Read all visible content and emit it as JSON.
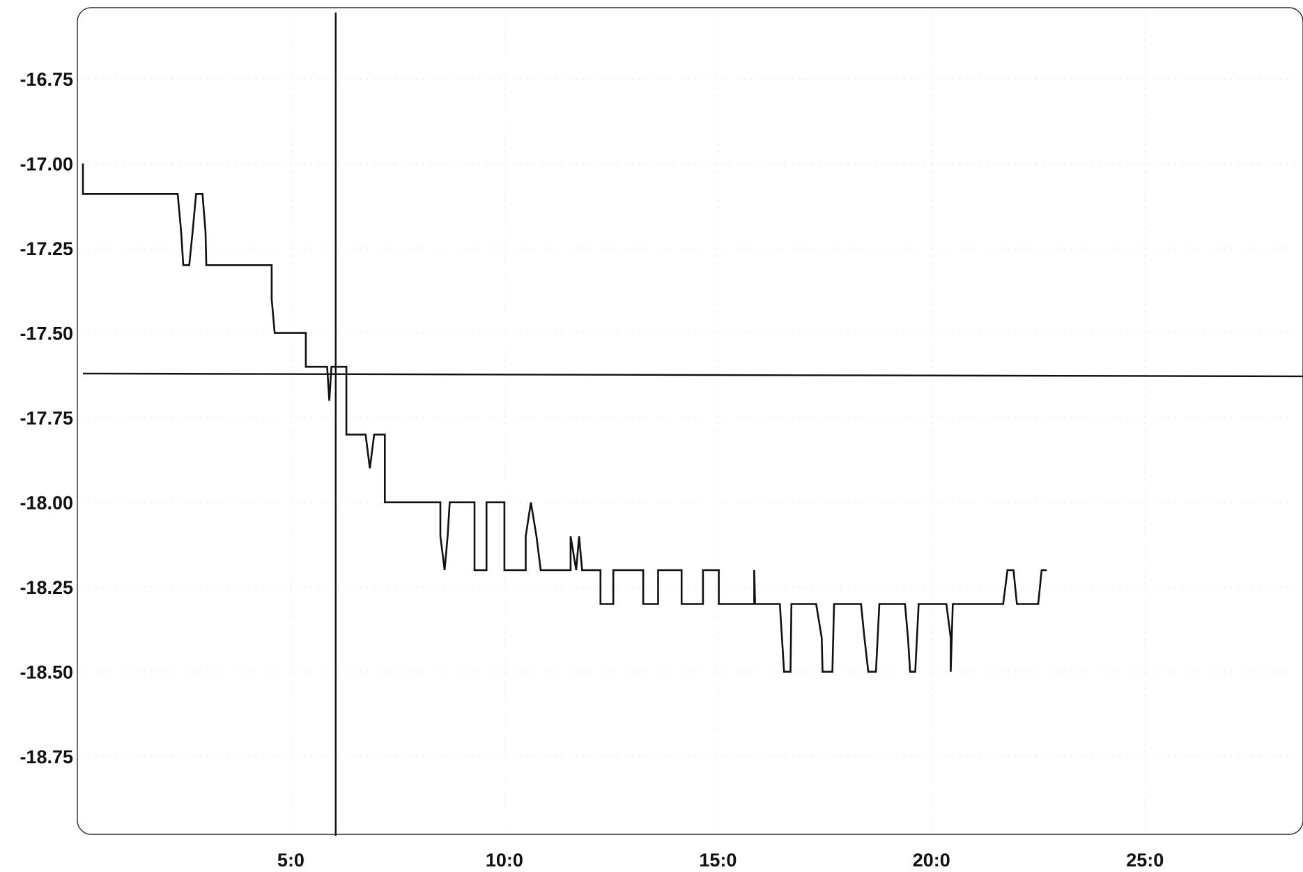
{
  "chart_data": {
    "type": "line",
    "title": "",
    "xlabel": "",
    "ylabel": "",
    "xlim": [
      0,
      28.7
    ],
    "ylim": [
      -18.98,
      -16.54
    ],
    "grid": true,
    "y_ticks": [
      {
        "value": -16.75,
        "label": "-16.75"
      },
      {
        "value": -17.0,
        "label": "-17.00"
      },
      {
        "value": -17.25,
        "label": "-17.25"
      },
      {
        "value": -17.5,
        "label": "-17.50"
      },
      {
        "value": -17.75,
        "label": "-17.75"
      },
      {
        "value": -18.0,
        "label": "-18.00"
      },
      {
        "value": -18.25,
        "label": "-18.25"
      },
      {
        "value": -18.5,
        "label": "-18.50"
      },
      {
        "value": -18.75,
        "label": "-18.75"
      }
    ],
    "x_ticks": [
      {
        "value": 5,
        "label": "5:0"
      },
      {
        "value": 10,
        "label": "10:0"
      },
      {
        "value": 15,
        "label": "15:0"
      },
      {
        "value": 20,
        "label": "20:0"
      },
      {
        "value": 25,
        "label": "25:0"
      }
    ],
    "cursor": {
      "x": 6.05,
      "y": -17.62
    },
    "series": [
      {
        "points": [
          [
            0.13,
            -17.0
          ],
          [
            0.13,
            -17.09
          ],
          [
            2.35,
            -17.09
          ],
          [
            2.43,
            -17.2
          ],
          [
            2.48,
            -17.3
          ],
          [
            2.62,
            -17.3
          ],
          [
            2.7,
            -17.2
          ],
          [
            2.78,
            -17.09
          ],
          [
            2.93,
            -17.09
          ],
          [
            3.0,
            -17.2
          ],
          [
            3.02,
            -17.3
          ],
          [
            4.55,
            -17.3
          ],
          [
            4.55,
            -17.4
          ],
          [
            4.62,
            -17.5
          ],
          [
            5.35,
            -17.5
          ],
          [
            5.35,
            -17.6
          ],
          [
            5.85,
            -17.6
          ],
          [
            5.9,
            -17.7
          ],
          [
            5.95,
            -17.6
          ],
          [
            6.3,
            -17.6
          ],
          [
            6.3,
            -17.8
          ],
          [
            6.75,
            -17.8
          ],
          [
            6.85,
            -17.9
          ],
          [
            6.95,
            -17.8
          ],
          [
            7.2,
            -17.8
          ],
          [
            7.2,
            -18.0
          ],
          [
            8.5,
            -18.0
          ],
          [
            8.5,
            -18.1
          ],
          [
            8.6,
            -18.2
          ],
          [
            8.67,
            -18.1
          ],
          [
            8.72,
            -18.0
          ],
          [
            9.3,
            -18.0
          ],
          [
            9.3,
            -18.2
          ],
          [
            9.58,
            -18.2
          ],
          [
            9.58,
            -18.0
          ],
          [
            10.0,
            -18.0
          ],
          [
            10.0,
            -18.2
          ],
          [
            10.5,
            -18.2
          ],
          [
            10.5,
            -18.1
          ],
          [
            10.62,
            -18.0
          ],
          [
            10.75,
            -18.1
          ],
          [
            10.85,
            -18.2
          ],
          [
            11.55,
            -18.2
          ],
          [
            11.55,
            -18.1
          ],
          [
            11.68,
            -18.2
          ],
          [
            11.75,
            -18.1
          ],
          [
            11.82,
            -18.2
          ],
          [
            12.25,
            -18.2
          ],
          [
            12.25,
            -18.3
          ],
          [
            12.55,
            -18.3
          ],
          [
            12.55,
            -18.2
          ],
          [
            13.25,
            -18.2
          ],
          [
            13.25,
            -18.3
          ],
          [
            13.6,
            -18.3
          ],
          [
            13.6,
            -18.2
          ],
          [
            14.15,
            -18.2
          ],
          [
            14.15,
            -18.3
          ],
          [
            14.65,
            -18.3
          ],
          [
            14.65,
            -18.2
          ],
          [
            15.02,
            -18.2
          ],
          [
            15.02,
            -18.3
          ],
          [
            15.85,
            -18.3
          ],
          [
            15.85,
            -18.2
          ],
          [
            15.87,
            -18.3
          ],
          [
            16.45,
            -18.3
          ],
          [
            16.55,
            -18.5
          ],
          [
            16.7,
            -18.5
          ],
          [
            16.72,
            -18.3
          ],
          [
            17.3,
            -18.3
          ],
          [
            17.43,
            -18.4
          ],
          [
            17.45,
            -18.5
          ],
          [
            17.68,
            -18.5
          ],
          [
            17.72,
            -18.3
          ],
          [
            18.35,
            -18.3
          ],
          [
            18.43,
            -18.4
          ],
          [
            18.52,
            -18.5
          ],
          [
            18.7,
            -18.5
          ],
          [
            18.78,
            -18.3
          ],
          [
            19.38,
            -18.3
          ],
          [
            19.45,
            -18.4
          ],
          [
            19.5,
            -18.5
          ],
          [
            19.62,
            -18.5
          ],
          [
            19.7,
            -18.3
          ],
          [
            20.35,
            -18.3
          ],
          [
            20.45,
            -18.4
          ],
          [
            20.45,
            -18.5
          ],
          [
            20.5,
            -18.3
          ],
          [
            21.68,
            -18.3
          ],
          [
            21.78,
            -18.2
          ],
          [
            21.92,
            -18.2
          ],
          [
            22.0,
            -18.3
          ],
          [
            22.5,
            -18.3
          ],
          [
            22.58,
            -18.2
          ],
          [
            22.7,
            -18.2
          ]
        ]
      }
    ]
  }
}
